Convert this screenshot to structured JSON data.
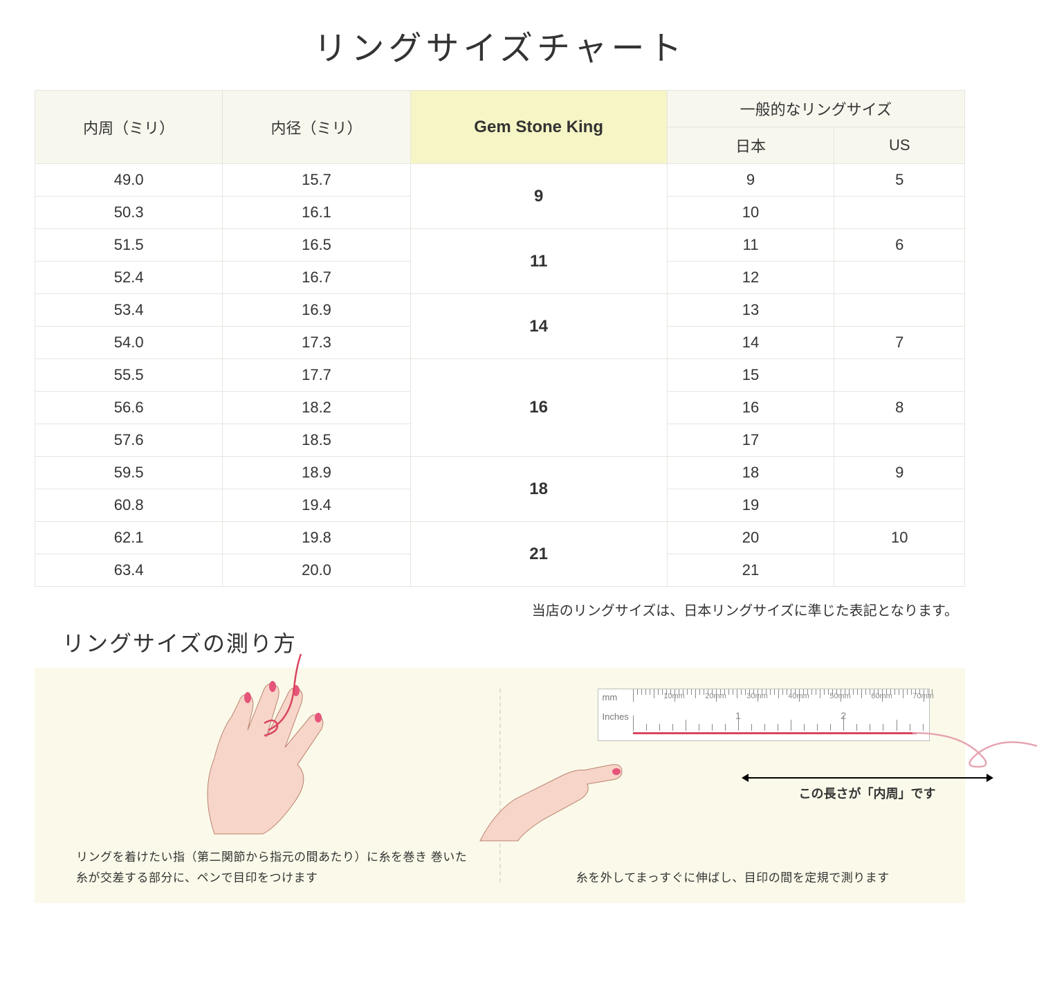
{
  "title": "リングサイズチャート",
  "table": {
    "headers": {
      "circumference": "内周（ミリ）",
      "diameter": "内径（ミリ）",
      "gsk": "Gem Stone King",
      "general_group": "一般的なリングサイズ",
      "japan": "日本",
      "us": "US"
    },
    "highlight_bg": "#f6f5c5",
    "header_bg": "#f7f7ee",
    "border_color": "#e5e5e0",
    "rows": [
      {
        "circ": "49.0",
        "dia": "15.7",
        "jp": "9",
        "us": "5"
      },
      {
        "circ": "50.3",
        "dia": "16.1",
        "jp": "10",
        "us": ""
      },
      {
        "circ": "51.5",
        "dia": "16.5",
        "jp": "11",
        "us": "6"
      },
      {
        "circ": "52.4",
        "dia": "16.7",
        "jp": "12",
        "us": ""
      },
      {
        "circ": "53.4",
        "dia": "16.9",
        "jp": "13",
        "us": ""
      },
      {
        "circ": "54.0",
        "dia": "17.3",
        "jp": "14",
        "us": "7"
      },
      {
        "circ": "55.5",
        "dia": "17.7",
        "jp": "15",
        "us": ""
      },
      {
        "circ": "56.6",
        "dia": "18.2",
        "jp": "16",
        "us": "8"
      },
      {
        "circ": "57.6",
        "dia": "18.5",
        "jp": "17",
        "us": ""
      },
      {
        "circ": "59.5",
        "dia": "18.9",
        "jp": "18",
        "us": "9"
      },
      {
        "circ": "60.8",
        "dia": "19.4",
        "jp": "19",
        "us": ""
      },
      {
        "circ": "62.1",
        "dia": "19.8",
        "jp": "20",
        "us": "10"
      },
      {
        "circ": "63.4",
        "dia": "20.0",
        "jp": "21",
        "us": ""
      }
    ],
    "gsk_groups": [
      {
        "value": "9",
        "span": 2
      },
      {
        "value": "11",
        "span": 2
      },
      {
        "value": "14",
        "span": 2
      },
      {
        "value": "16",
        "span": 3
      },
      {
        "value": "18",
        "span": 2
      },
      {
        "value": "21",
        "span": 2
      }
    ]
  },
  "note": "当店のリングサイズは、日本リングサイズに準じた表記となります。",
  "howto": {
    "title": "リングサイズの測り方",
    "background": "#fbfaea",
    "left_caption": "リングを着けたい指（第二関節から指元の間あたり）に糸を巻き\n巻いた糸が交差する部分に、ペンで目印をつけます",
    "right_caption": "糸を外してまっすぐに伸ばし、目印の間を定規で測ります",
    "arrow_label": "この長さが「内周」です",
    "ruler": {
      "mm_label": "mm",
      "inches_label": "Inches",
      "mm_marks": [
        "10mm",
        "20mm",
        "30mm",
        "40mm",
        "50mm",
        "60mm",
        "70mm"
      ],
      "inch_marks": [
        "1",
        "2"
      ]
    },
    "hand_skin": "#f7d5c9",
    "nail_color": "#e6557a",
    "thread_color": "#d9455f"
  }
}
